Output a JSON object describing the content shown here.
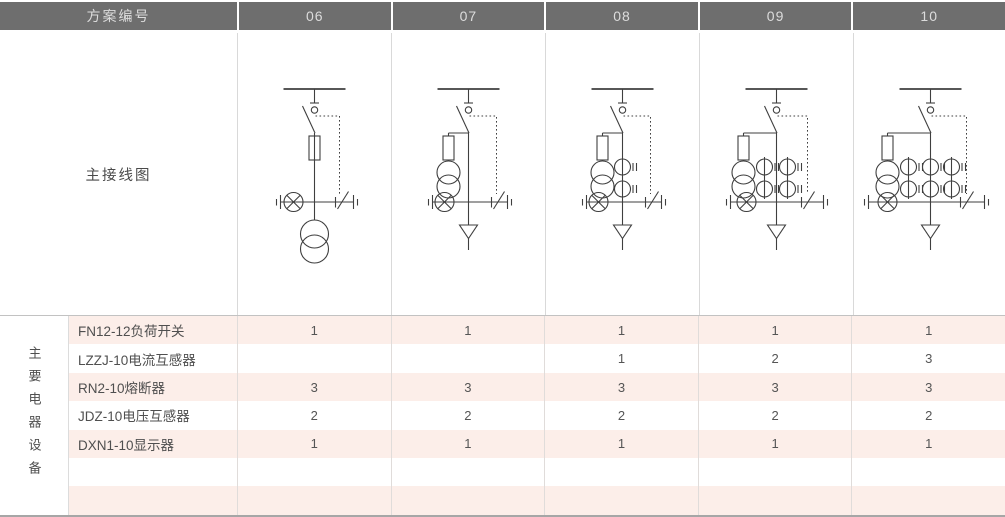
{
  "table": {
    "header": {
      "label": "方案编号",
      "schemes": [
        "06",
        "07",
        "08",
        "09",
        "10"
      ]
    },
    "diagram_row_label": "主接线图",
    "section_label": "主要电器设备",
    "equipment_rows": [
      {
        "name": "FN12-12负荷开关",
        "values": [
          "1",
          "1",
          "1",
          "1",
          "1"
        ]
      },
      {
        "name": "LZZJ-10电流互感器",
        "values": [
          "",
          "",
          "1",
          "2",
          "3"
        ]
      },
      {
        "name": "RN2-10熔断器",
        "values": [
          "3",
          "3",
          "3",
          "3",
          "3"
        ]
      },
      {
        "name": "JDZ-10电压互感器",
        "values": [
          "2",
          "2",
          "2",
          "2",
          "2"
        ]
      },
      {
        "name": "DXN1-10显示器",
        "values": [
          "1",
          "1",
          "1",
          "1",
          "1"
        ]
      },
      {
        "name": "",
        "values": [
          "",
          "",
          "",
          "",
          ""
        ]
      },
      {
        "name": "",
        "values": [
          "",
          "",
          "",
          "",
          ""
        ]
      }
    ],
    "diagrams": [
      {
        "number": "06",
        "fuse_location": "main-line",
        "voltage_transformer": "bottom",
        "current_transformers": 0,
        "outgoing": "none",
        "components": [
          "busbar",
          "load-break-switch",
          "interlock-link",
          "fuse",
          "indicator-lamp",
          "earthing-switch",
          "voltage-transformer"
        ]
      },
      {
        "number": "07",
        "fuse_location": "branch",
        "voltage_transformer": "branch",
        "current_transformers": 0,
        "outgoing": "arrow",
        "components": [
          "busbar",
          "load-break-switch",
          "interlock-link",
          "fuse",
          "voltage-transformer",
          "indicator-lamp",
          "earthing-switch",
          "outgoing-feeder"
        ]
      },
      {
        "number": "08",
        "fuse_location": "branch",
        "voltage_transformer": "branch",
        "current_transformers": 1,
        "outgoing": "arrow",
        "components": [
          "busbar",
          "load-break-switch",
          "interlock-link",
          "fuse",
          "voltage-transformer",
          "current-transformer",
          "indicator-lamp",
          "earthing-switch",
          "outgoing-feeder"
        ]
      },
      {
        "number": "09",
        "fuse_location": "branch",
        "voltage_transformer": "branch",
        "current_transformers": 2,
        "outgoing": "arrow",
        "components": [
          "busbar",
          "load-break-switch",
          "interlock-link",
          "fuse",
          "voltage-transformer",
          "current-transformer",
          "indicator-lamp",
          "earthing-switch",
          "outgoing-feeder"
        ]
      },
      {
        "number": "10",
        "fuse_location": "branch",
        "voltage_transformer": "branch",
        "current_transformers": 3,
        "outgoing": "arrow",
        "components": [
          "busbar",
          "load-break-switch",
          "interlock-link",
          "fuse",
          "voltage-transformer",
          "current-transformer",
          "indicator-lamp",
          "earthing-switch",
          "outgoing-feeder"
        ]
      }
    ]
  },
  "colors": {
    "header_bg": "#6e6e6e",
    "header_text": "#dcdcdc",
    "row_highlight": "#fceee9",
    "grid_line": "#d9d9d9",
    "section_border": "#c2c2c2",
    "bottom_border": "#a6a6a6",
    "diagram_stroke": "#3f3f3f",
    "body_text": "#4f4f4f"
  }
}
